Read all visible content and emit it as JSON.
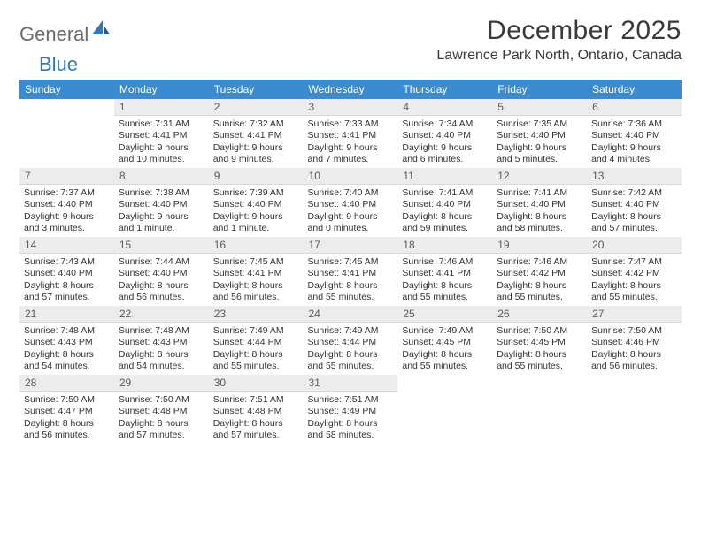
{
  "brand": {
    "left": "General",
    "right": "Blue"
  },
  "title": "December 2025",
  "location": "Lawrence Park North, Ontario, Canada",
  "colors": {
    "header_bg": "#3b8bd0",
    "header_text": "#ffffff",
    "daynum_bg": "#ececec",
    "cell_border_bottom": "#3b6fa0",
    "brand_gray": "#6b6b6b",
    "brand_blue": "#2f79c2",
    "text": "#333333",
    "background": "#ffffff"
  },
  "typography": {
    "title_fontsize": 30,
    "location_fontsize": 16,
    "header_fontsize": 12,
    "daynum_fontsize": 12,
    "info_fontsize": 10.5,
    "font_family": "Arial"
  },
  "day_headers": [
    "Sunday",
    "Monday",
    "Tuesday",
    "Wednesday",
    "Thursday",
    "Friday",
    "Saturday"
  ],
  "first_weekday_index": 1,
  "days_in_month": 31,
  "days": {
    "1": {
      "sunrise": "7:31 AM",
      "sunset": "4:41 PM",
      "daylight": "9 hours and 10 minutes."
    },
    "2": {
      "sunrise": "7:32 AM",
      "sunset": "4:41 PM",
      "daylight": "9 hours and 9 minutes."
    },
    "3": {
      "sunrise": "7:33 AM",
      "sunset": "4:41 PM",
      "daylight": "9 hours and 7 minutes."
    },
    "4": {
      "sunrise": "7:34 AM",
      "sunset": "4:40 PM",
      "daylight": "9 hours and 6 minutes."
    },
    "5": {
      "sunrise": "7:35 AM",
      "sunset": "4:40 PM",
      "daylight": "9 hours and 5 minutes."
    },
    "6": {
      "sunrise": "7:36 AM",
      "sunset": "4:40 PM",
      "daylight": "9 hours and 4 minutes."
    },
    "7": {
      "sunrise": "7:37 AM",
      "sunset": "4:40 PM",
      "daylight": "9 hours and 3 minutes."
    },
    "8": {
      "sunrise": "7:38 AM",
      "sunset": "4:40 PM",
      "daylight": "9 hours and 1 minute."
    },
    "9": {
      "sunrise": "7:39 AM",
      "sunset": "4:40 PM",
      "daylight": "9 hours and 1 minute."
    },
    "10": {
      "sunrise": "7:40 AM",
      "sunset": "4:40 PM",
      "daylight": "9 hours and 0 minutes."
    },
    "11": {
      "sunrise": "7:41 AM",
      "sunset": "4:40 PM",
      "daylight": "8 hours and 59 minutes."
    },
    "12": {
      "sunrise": "7:41 AM",
      "sunset": "4:40 PM",
      "daylight": "8 hours and 58 minutes."
    },
    "13": {
      "sunrise": "7:42 AM",
      "sunset": "4:40 PM",
      "daylight": "8 hours and 57 minutes."
    },
    "14": {
      "sunrise": "7:43 AM",
      "sunset": "4:40 PM",
      "daylight": "8 hours and 57 minutes."
    },
    "15": {
      "sunrise": "7:44 AM",
      "sunset": "4:40 PM",
      "daylight": "8 hours and 56 minutes."
    },
    "16": {
      "sunrise": "7:45 AM",
      "sunset": "4:41 PM",
      "daylight": "8 hours and 56 minutes."
    },
    "17": {
      "sunrise": "7:45 AM",
      "sunset": "4:41 PM",
      "daylight": "8 hours and 55 minutes."
    },
    "18": {
      "sunrise": "7:46 AM",
      "sunset": "4:41 PM",
      "daylight": "8 hours and 55 minutes."
    },
    "19": {
      "sunrise": "7:46 AM",
      "sunset": "4:42 PM",
      "daylight": "8 hours and 55 minutes."
    },
    "20": {
      "sunrise": "7:47 AM",
      "sunset": "4:42 PM",
      "daylight": "8 hours and 55 minutes."
    },
    "21": {
      "sunrise": "7:48 AM",
      "sunset": "4:43 PM",
      "daylight": "8 hours and 54 minutes."
    },
    "22": {
      "sunrise": "7:48 AM",
      "sunset": "4:43 PM",
      "daylight": "8 hours and 54 minutes."
    },
    "23": {
      "sunrise": "7:49 AM",
      "sunset": "4:44 PM",
      "daylight": "8 hours and 55 minutes."
    },
    "24": {
      "sunrise": "7:49 AM",
      "sunset": "4:44 PM",
      "daylight": "8 hours and 55 minutes."
    },
    "25": {
      "sunrise": "7:49 AM",
      "sunset": "4:45 PM",
      "daylight": "8 hours and 55 minutes."
    },
    "26": {
      "sunrise": "7:50 AM",
      "sunset": "4:45 PM",
      "daylight": "8 hours and 55 minutes."
    },
    "27": {
      "sunrise": "7:50 AM",
      "sunset": "4:46 PM",
      "daylight": "8 hours and 56 minutes."
    },
    "28": {
      "sunrise": "7:50 AM",
      "sunset": "4:47 PM",
      "daylight": "8 hours and 56 minutes."
    },
    "29": {
      "sunrise": "7:50 AM",
      "sunset": "4:48 PM",
      "daylight": "8 hours and 57 minutes."
    },
    "30": {
      "sunrise": "7:51 AM",
      "sunset": "4:48 PM",
      "daylight": "8 hours and 57 minutes."
    },
    "31": {
      "sunrise": "7:51 AM",
      "sunset": "4:49 PM",
      "daylight": "8 hours and 58 minutes."
    }
  },
  "labels": {
    "sunrise": "Sunrise:",
    "sunset": "Sunset:",
    "daylight": "Daylight:"
  }
}
